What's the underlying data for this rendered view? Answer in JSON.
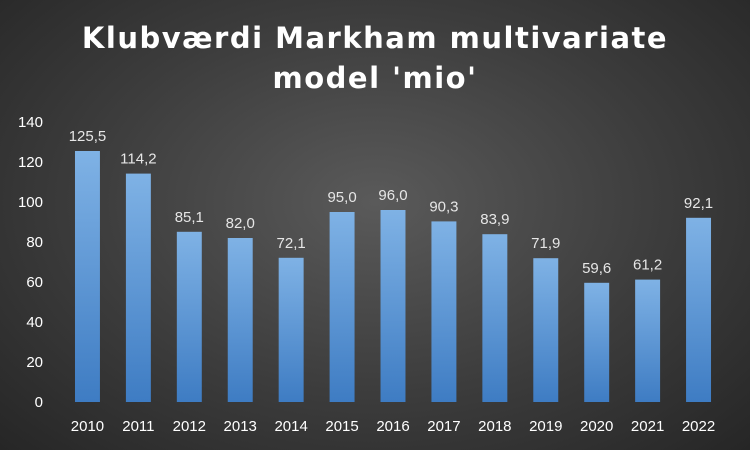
{
  "chart_data": {
    "type": "bar",
    "title_lines": [
      "Klubværdi Markham multivariate",
      "model 'mio'"
    ],
    "categories": [
      "2010",
      "2011",
      "2012",
      "2013",
      "2014",
      "2015",
      "2016",
      "2017",
      "2018",
      "2019",
      "2020",
      "2021",
      "2022"
    ],
    "values": [
      125.5,
      114.2,
      85.1,
      82.0,
      72.1,
      95.0,
      96.0,
      90.3,
      83.9,
      71.9,
      59.6,
      61.2,
      92.1
    ],
    "data_labels": [
      "125,5",
      "114,2",
      "85,1",
      "82,0",
      "72,1",
      "95,0",
      "96,0",
      "90,3",
      "83,9",
      "71,9",
      "59,6",
      "61,2",
      "92,1"
    ],
    "ylim": [
      0,
      140
    ],
    "yticks": [
      0,
      20,
      40,
      60,
      80,
      100,
      120,
      140
    ],
    "grid": false,
    "legend": "none",
    "xlabel": "",
    "ylabel": "",
    "colors": {
      "bar_top": "#7fb2e5",
      "bar_bottom": "#3e7cc3",
      "text": "#ffffff",
      "background": "#3c3c3c"
    }
  }
}
